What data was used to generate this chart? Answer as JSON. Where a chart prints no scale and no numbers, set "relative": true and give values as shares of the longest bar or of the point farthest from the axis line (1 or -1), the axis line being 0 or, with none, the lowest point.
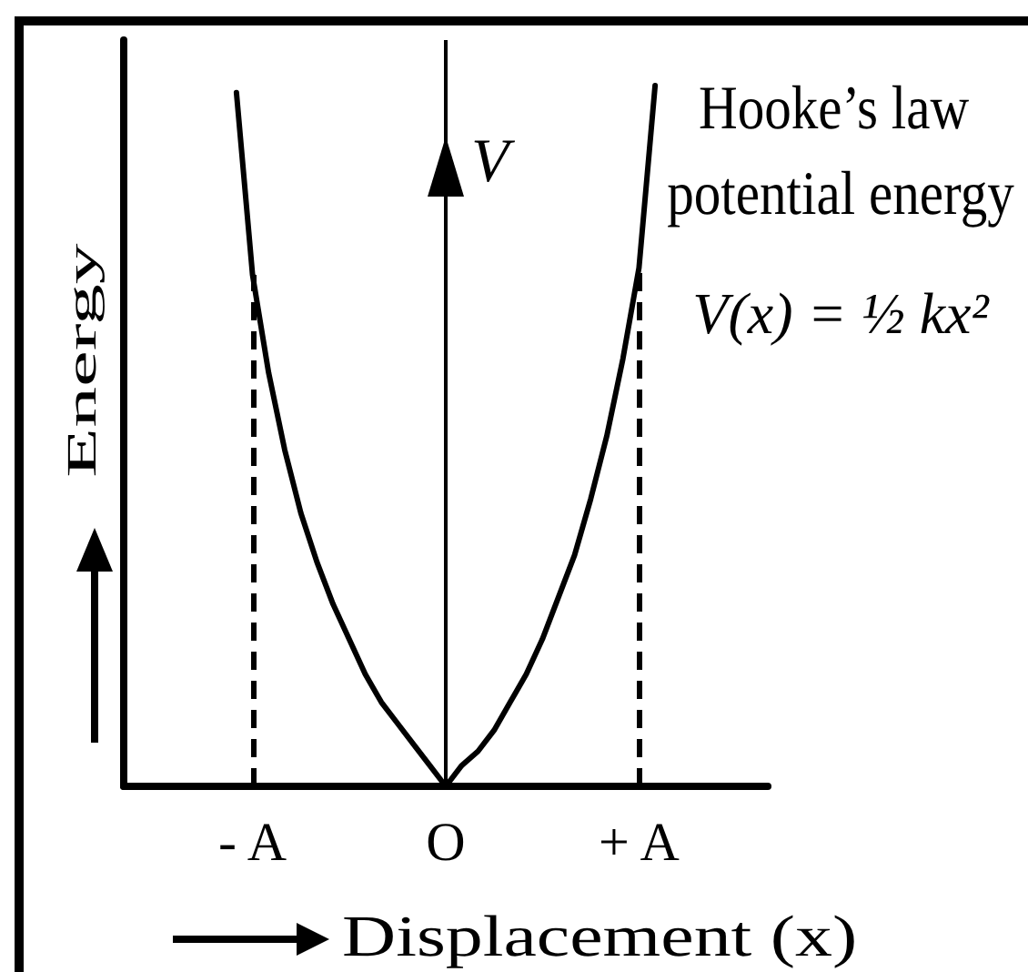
{
  "chart_data": {
    "type": "line",
    "title": "Hooke’s law potential energy",
    "xlabel": "Displacement (x)",
    "ylabel": "Energy",
    "annotations": [
      "V(x) = ½ kx²"
    ],
    "relative": true,
    "categories": [
      null,
      null,
      null,
      null,
      null,
      null,
      null,
      null,
      "- A",
      null,
      null,
      null,
      null,
      null,
      null,
      null,
      null,
      null,
      null,
      null,
      "O",
      null,
      null,
      null,
      null,
      null,
      null,
      null,
      null,
      null,
      null,
      null,
      "+ A",
      null,
      null,
      null,
      null,
      null,
      null,
      null,
      null
    ],
    "series": [
      {
        "color": "#000000",
        "values": [
          null,
          null,
          null,
          null,
          null,
          null,
          null,
          0.99,
          0.73,
          0.59,
          0.48,
          0.39,
          0.32,
          0.26,
          0.21,
          0.16,
          0.12,
          0.09,
          0.06,
          0.03,
          0,
          0.03,
          0.05,
          0.08,
          0.12,
          0.16,
          0.21,
          0.27,
          0.33,
          0.41,
          0.5,
          0.61,
          0.74,
          1,
          null,
          null,
          null,
          null,
          null,
          null,
          null
        ]
      }
    ],
    "ref_lines": [
      {
        "axis": "x",
        "value": "O",
        "label": "V",
        "color": "#000000",
        "line_style": "solid"
      },
      {
        "axis": "x",
        "value": "- A",
        "color": "#000000",
        "line_style": "dashed"
      },
      {
        "axis": "x",
        "value": "+ A",
        "color": "#000000",
        "line_style": "dashed"
      }
    ],
    "marker": "none",
    "line_style": "solid"
  }
}
